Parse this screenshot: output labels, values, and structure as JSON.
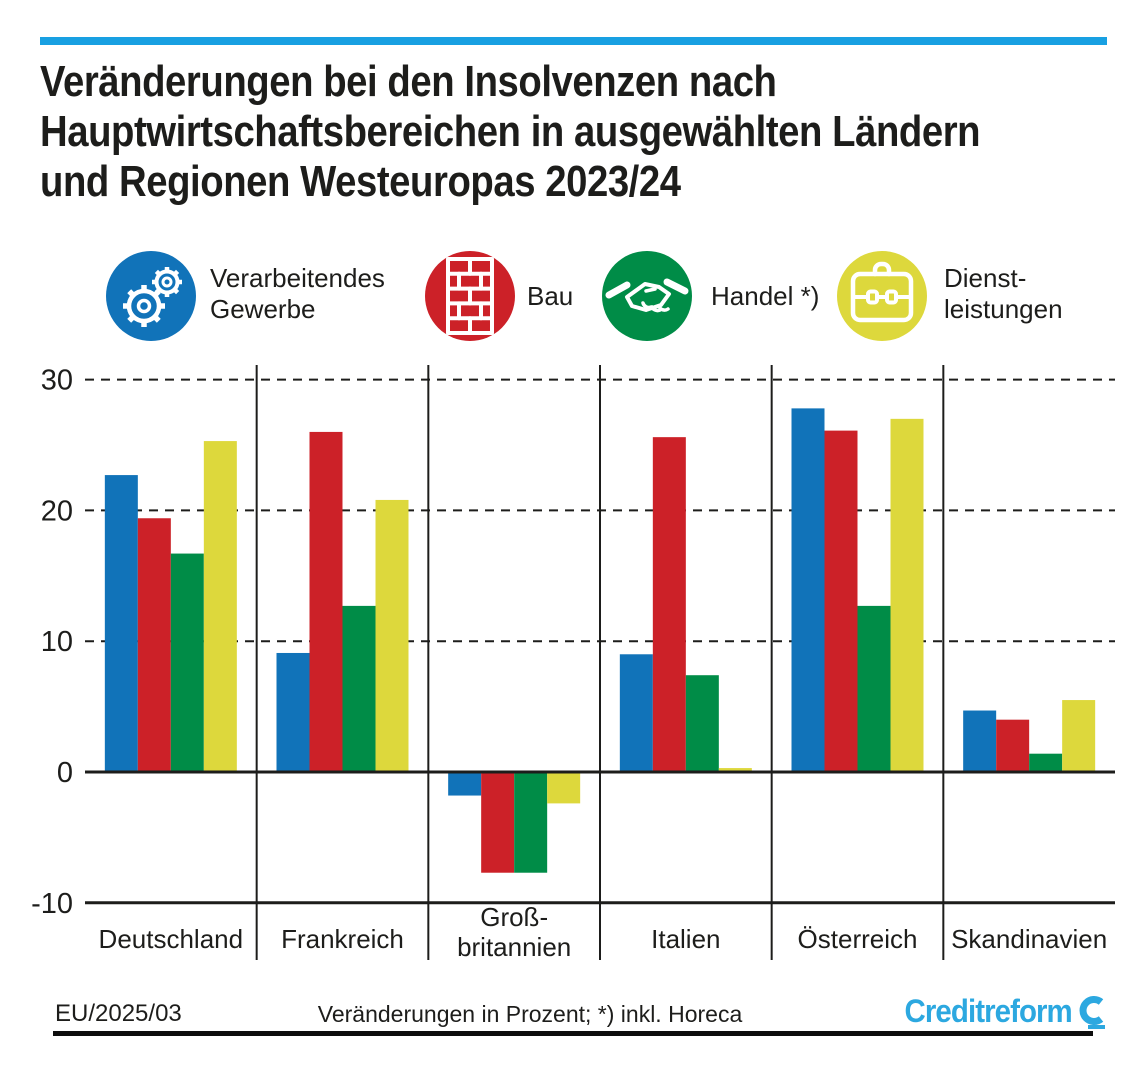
{
  "meta": {
    "accent_color": "#18a0e2",
    "brand_color": "#2ca8e0",
    "text_color": "#1d1d1b"
  },
  "header": {
    "title_lines": [
      "Veränderungen bei den Insolvenzen nach",
      "Hauptwirtschaftsbereichen in ausgewählten Ländern",
      "und Regionen Westeuropas 2023/24"
    ]
  },
  "legend": {
    "items": [
      {
        "id": "verarbeitendes-gewerbe",
        "label": "Verarbeitendes\nGewerbe",
        "circle_color": "#1173b9",
        "icon": "gears-icon"
      },
      {
        "id": "bau",
        "label": "Bau",
        "circle_color": "#cc2128",
        "icon": "brick-wall-icon"
      },
      {
        "id": "handel",
        "label": "Handel *)",
        "circle_color": "#008c47",
        "icon": "handshake-icon"
      },
      {
        "id": "dienstleistungen",
        "label": "Dienst-\nleistungen",
        "circle_color": "#ddd83c",
        "icon": "briefcase-icon"
      }
    ]
  },
  "chart_data": {
    "type": "bar",
    "title": "Veränderungen bei den Insolvenzen nach Hauptwirtschaftsbereichen in ausgewählten Ländern und Regionen Westeuropas 2023/24",
    "unit": "Prozent",
    "categories": [
      "Deutschland",
      "Frankreich",
      "Groß-\nbritannien",
      "Italien",
      "Österreich",
      "Skandinavien"
    ],
    "series": [
      {
        "id": "verarbeitendes-gewerbe",
        "name": "Verarbeitendes Gewerbe",
        "color": "#1173b9",
        "values": [
          22.7,
          9.1,
          -1.8,
          9.0,
          27.8,
          4.7
        ]
      },
      {
        "id": "bau",
        "name": "Bau",
        "color": "#cc2128",
        "values": [
          19.4,
          26.0,
          -7.7,
          25.6,
          26.1,
          4.0
        ]
      },
      {
        "id": "handel",
        "name": "Handel *)",
        "color": "#008c47",
        "values": [
          16.7,
          12.7,
          -7.7,
          7.4,
          12.7,
          1.4
        ]
      },
      {
        "id": "dienstleistungen",
        "name": "Dienstleistungen",
        "color": "#ddd83c",
        "values": [
          25.3,
          20.8,
          -2.4,
          0.3,
          27.0,
          5.5
        ]
      }
    ],
    "ylim": [
      -10,
      30
    ],
    "yticks": [
      30,
      20,
      10,
      0,
      -10
    ],
    "grid": "dashed horizontal lines at 10/20/30, solid lines at 0 and -10, solid vertical column dividers",
    "legend_position": "top"
  },
  "footer": {
    "document_code": "EU/2025/03",
    "note": "Veränderungen in Prozent; *) inkl. Horeca",
    "brand": "Creditreform"
  }
}
